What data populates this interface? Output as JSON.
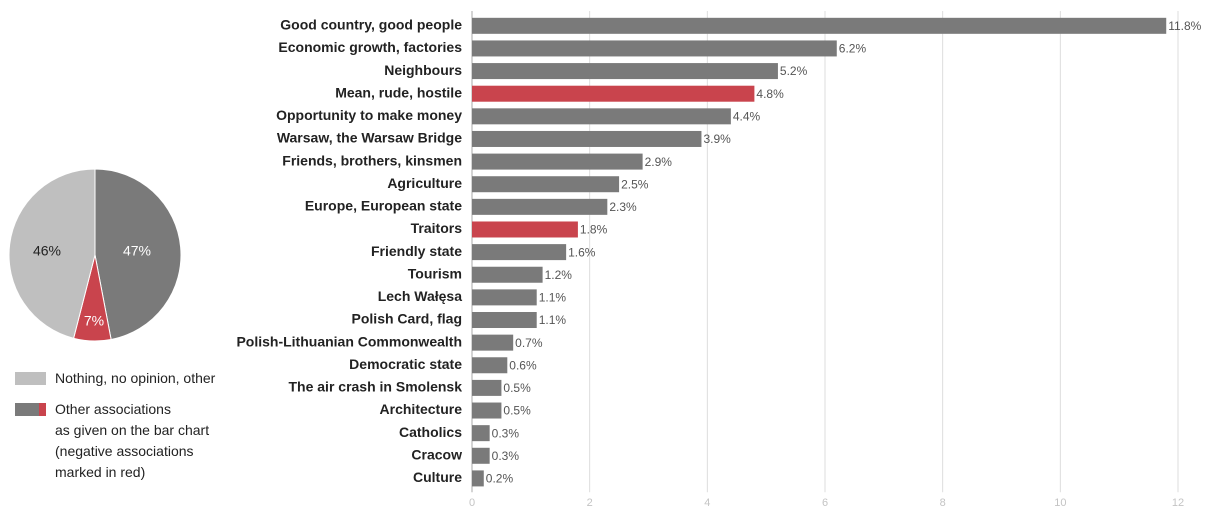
{
  "colors": {
    "neutral": "#7a7a7a",
    "negative": "#c9444d",
    "other": "#bfbfbf",
    "grid": "#dddddd"
  },
  "legend": [
    {
      "label": "Nothing, no opinion, other",
      "color": "#bfbfbf"
    },
    {
      "label": "Other associations\nas given on the bar chart\n(negative associations\nmarked in red)",
      "colors": [
        "#7a7a7a",
        "#c9444d"
      ]
    }
  ],
  "chart_data": [
    {
      "type": "pie",
      "slices": [
        {
          "label": "47%",
          "value": 47,
          "color": "#7a7a7a"
        },
        {
          "label": "7%",
          "value": 7,
          "color": "#c9444d"
        },
        {
          "label": "46%",
          "value": 46,
          "color": "#bfbfbf"
        }
      ]
    },
    {
      "type": "bar",
      "orientation": "horizontal",
      "categories": [
        "Good country, good people",
        "Economic growth, factories",
        "Neighbours",
        "Mean, rude, hostile",
        "Opportunity to make money",
        "Warsaw, the Warsaw Bridge",
        "Friends, brothers, kinsmen",
        "Agriculture",
        "Europe, European state",
        "Traitors",
        "Friendly state",
        "Tourism",
        "Lech Wałęsa",
        "Polish Card, flag",
        "Polish-Lithuanian Commonwealth",
        "Democratic state",
        "The air crash in Smolensk",
        "Architecture",
        "Catholics",
        "Cracow",
        "Culture"
      ],
      "values": [
        11.8,
        6.2,
        5.2,
        4.8,
        4.4,
        3.9,
        2.9,
        2.5,
        2.3,
        1.8,
        1.6,
        1.2,
        1.1,
        1.1,
        0.7,
        0.6,
        0.5,
        0.5,
        0.3,
        0.3,
        0.2
      ],
      "value_labels": [
        "11.8%",
        "6.2%",
        "5.2%",
        "4.8%",
        "4.4%",
        "3.9%",
        "2.9%",
        "2.5%",
        "2.3%",
        "1.8%",
        "1.6%",
        "1.2%",
        "1.1%",
        "1.1%",
        "0.7%",
        "0.6%",
        "0.5%",
        "0.5%",
        "0.3%",
        "0.3%",
        "0.2%"
      ],
      "negative": [
        false,
        false,
        false,
        true,
        false,
        false,
        false,
        false,
        false,
        true,
        false,
        false,
        false,
        false,
        false,
        false,
        false,
        false,
        false,
        false,
        false
      ],
      "xlim": [
        0,
        12
      ],
      "xticks": [
        0,
        2,
        4,
        6,
        8,
        10,
        12
      ],
      "grid": true
    }
  ]
}
